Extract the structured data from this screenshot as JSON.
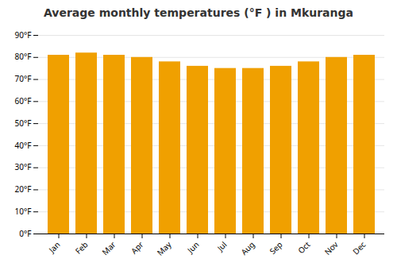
{
  "chart_data": {
    "type": "bar",
    "title": "Average monthly temperatures (°F ) in Mkuranga",
    "categories": [
      "Jan",
      "Feb",
      "Mar",
      "Apr",
      "May",
      "Jun",
      "Jul",
      "Aug",
      "Sep",
      "Oct",
      "Nov",
      "Dec"
    ],
    "values": [
      81,
      82,
      81,
      80,
      78,
      76,
      75,
      75,
      76,
      78,
      80,
      81
    ],
    "color": "#F0A000",
    "ylim": [
      0,
      90
    ],
    "yticks": [
      {
        "value": 0,
        "label": "0°F"
      },
      {
        "value": 10,
        "label": "10°F"
      },
      {
        "value": 20,
        "label": "20°F"
      },
      {
        "value": 30,
        "label": "30°F"
      },
      {
        "value": 40,
        "label": "40°F"
      },
      {
        "value": 50,
        "label": "50°F"
      },
      {
        "value": 60,
        "label": "60°F"
      },
      {
        "value": 70,
        "label": "70°F"
      },
      {
        "value": 80,
        "label": "80°F"
      },
      {
        "value": 90,
        "label": "90°F"
      }
    ],
    "grid": true
  }
}
